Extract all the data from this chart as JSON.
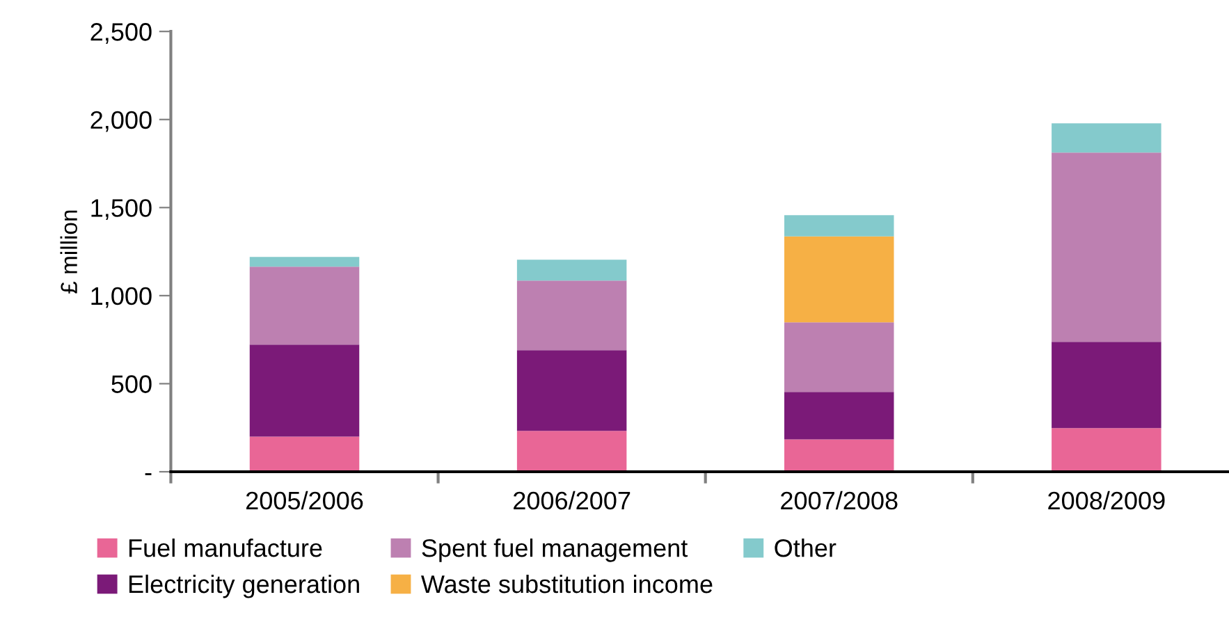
{
  "chart_data": {
    "type": "bar",
    "stacked": true,
    "ylabel": "£ million",
    "categories": [
      "2005/2006",
      "2006/2007",
      "2007/2008",
      "2008/2009"
    ],
    "series": [
      {
        "name": "Fuel manufacture",
        "color": "#e96696",
        "values": [
          200,
          232,
          184,
          248
        ]
      },
      {
        "name": "Electricity generation",
        "color": "#7b1a78",
        "values": [
          522,
          458,
          269,
          490
        ]
      },
      {
        "name": "Spent fuel management",
        "color": "#bd80b1",
        "values": [
          442,
          395,
          395,
          1074
        ]
      },
      {
        "name": "Waste substitution income",
        "color": "#f6b045",
        "values": [
          0,
          0,
          488,
          0
        ]
      },
      {
        "name": "Other",
        "color": "#84cacc",
        "values": [
          56,
          119,
          121,
          166
        ]
      }
    ],
    "ylim": [
      0,
      2500
    ],
    "yticks": [
      {
        "value": 0,
        "label": "-"
      },
      500,
      {
        "value": 1000,
        "label": "1,000"
      },
      {
        "value": 1500,
        "label": "1,500"
      },
      {
        "value": 2000,
        "label": "2,000"
      },
      {
        "value": 2500,
        "label": "2,500"
      }
    ],
    "grid": false,
    "legend": "bottom"
  }
}
